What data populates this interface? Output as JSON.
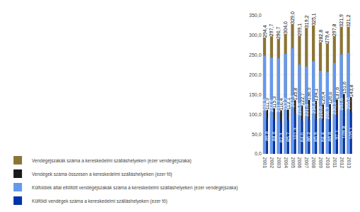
{
  "chart_data": {
    "type": "bar",
    "categories": [
      2001,
      2002,
      2003,
      2004,
      2005,
      2006,
      2007,
      2008,
      2009,
      2010,
      2011,
      2012,
      2013
    ],
    "series": [
      {
        "name": "Vendégéjszakák száma a kereskedelmi szálláshelyeken (ezer vendégéjszaka)",
        "color": "#8B7536",
        "values": [
          294.4,
          297.7,
          290.7,
          304.0,
          329.0,
          299.1,
          319.2,
          325.1,
          282.8,
          279.4,
          297.8,
          321.9,
          321.2
        ],
        "value_labels": [
          "294,4",
          "297,7",
          "290,7",
          "304,0",
          "329,0",
          "299,1",
          "319,2",
          "325,1",
          "282,8",
          "279,4",
          "297,8",
          "321,9",
          "321,2"
        ]
      },
      {
        "name": "Vendégek száma összesen a kereskedelmi szálláshelyeken (ezer fő)",
        "color": "#1a1a1a",
        "values": [
          111.9,
          115.3,
          110.4,
          112.1,
          135.8,
          122.7,
          136.5,
          134.1,
          125.4,
          126.0,
          137.6,
          151.6,
          143.8
        ],
        "value_labels": [
          "111,9",
          "115,3",
          "110,4",
          "112,1",
          "135,8",
          "122,7",
          "136,5",
          "134,1",
          "125,4",
          "126,0",
          "137,6",
          "151,6",
          "143,8"
        ]
      },
      {
        "name": "Külfoldiek által eltöltött vendégéjszakák száma a kereskedelmi szálláshelyeken (ezer vendégéjszaka)",
        "color": "#6699EE",
        "values": [
          248.5,
          243.6,
          241.7,
          253.2,
          267.1,
          225.9,
          221.0,
          234.4,
          210.0,
          206.9,
          230.3,
          251.6,
          255.6
        ],
        "value_labels": [
          "248,5",
          "243,6",
          "241,7",
          "253,2",
          "267,1",
          "225,9",
          "221,0",
          "234,4",
          "210,0",
          "206,9",
          "230,3",
          "251,6",
          "255,6"
        ]
      },
      {
        "name": "Külföldi vendégek száma a kereskedelmi szálláshelyeken (ezer fő)",
        "color": "#0033AA",
        "values": [
          89.8,
          88.0,
          82.3,
          85.7,
          101.3,
          84.0,
          86.2,
          85.9,
          84.4,
          86.8,
          97.1,
          109.8,
          105.1
        ],
        "value_labels": [
          "89,8",
          "88,0",
          "82,3",
          "85,7",
          "101,3",
          "84,0",
          "86,2",
          "85,9",
          "84,4",
          "86,8",
          "97,1",
          "109,8",
          "105,1"
        ]
      }
    ],
    "ylim": [
      0,
      350
    ],
    "yticks": [
      {
        "value": 0,
        "label": "0,0"
      },
      {
        "value": 50,
        "label": "50,0"
      },
      {
        "value": 100,
        "label": "100,0"
      },
      {
        "value": 150,
        "label": "150,0"
      },
      {
        "value": 200,
        "label": "200,0"
      },
      {
        "value": 250,
        "label": "250,0"
      },
      {
        "value": 300,
        "label": "300,0"
      },
      {
        "value": 350,
        "label": "350,0"
      }
    ],
    "grid": true,
    "data_labels": true
  }
}
